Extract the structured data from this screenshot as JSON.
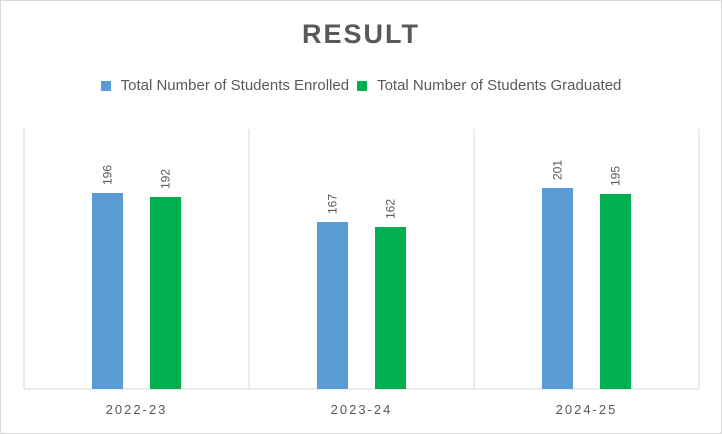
{
  "chart_data": {
    "type": "bar",
    "title": "RESULT",
    "categories": [
      "2022-23",
      "2023-24",
      "2024-25"
    ],
    "series": [
      {
        "name": "Total Number of Students Enrolled",
        "color": "#5b9bd5",
        "values": [
          196,
          167,
          201
        ]
      },
      {
        "name": "Total Number of Students Graduated",
        "color": "#00b050",
        "values": [
          192,
          162,
          195
        ]
      }
    ],
    "ylim": [
      0,
      250
    ],
    "grid": false,
    "legend_position": "top"
  }
}
